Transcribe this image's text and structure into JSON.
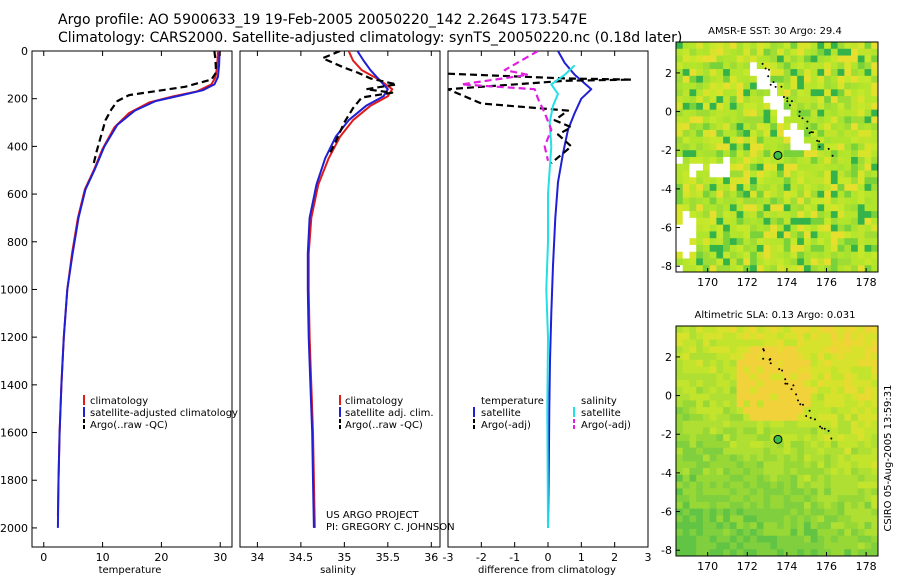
{
  "header": {
    "line1": "Argo profile: AO 5900633_19 19-Feb-2005 20050220_142 2.264S 173.547E",
    "line2": "Climatology: CARS2000. Satellite-adjusted climatology: synTS_20050220.nc (0.18d later)"
  },
  "credit": {
    "line1": "US ARGO PROJECT",
    "line2": "PI: GREGORY C. JOHNSON"
  },
  "footer_stamp": "CSIRO 05-Aug-2005 13:59:31",
  "colors": {
    "climatology": "#e11a1a",
    "satellite": "#1f1fd6",
    "argo": "#000000",
    "salinity_satellite": "#22e0e6",
    "salinity_argo": "#e020e0",
    "map_base": "#b5e62c"
  },
  "chart_data": [
    {
      "id": "temperature",
      "type": "line",
      "xlabel": "temperature",
      "ylabel": "",
      "xlim": [
        -2,
        32
      ],
      "ylim": [
        2080,
        0
      ],
      "xticks": [
        0,
        10,
        20,
        30
      ],
      "yticks": [
        0,
        200,
        400,
        600,
        800,
        1000,
        1200,
        1400,
        1600,
        1800,
        2000
      ],
      "legend": [
        "climatology",
        "satellite-adjusted climatology",
        "Argo(..raw -QC)"
      ],
      "series": [
        {
          "name": "climatology",
          "color": "#e11a1a",
          "dash": "",
          "points": [
            [
              29.6,
              0
            ],
            [
              29.5,
              60
            ],
            [
              29.2,
              110
            ],
            [
              28.5,
              140
            ],
            [
              26,
              170
            ],
            [
              22,
              190
            ],
            [
              18,
              215
            ],
            [
              14.5,
              260
            ],
            [
              12,
              320
            ],
            [
              10,
              410
            ],
            [
              8.5,
              500
            ],
            [
              7,
              580
            ],
            [
              5.8,
              700
            ],
            [
              4.8,
              850
            ],
            [
              4,
              1000
            ],
            [
              3.4,
              1200
            ],
            [
              3,
              1400
            ],
            [
              2.7,
              1600
            ],
            [
              2.5,
              1800
            ],
            [
              2.4,
              1950
            ]
          ]
        },
        {
          "name": "satellite-adjusted climatology",
          "color": "#1f1fd6",
          "dash": "",
          "points": [
            [
              29.9,
              0
            ],
            [
              29.8,
              60
            ],
            [
              29.6,
              110
            ],
            [
              29,
              140
            ],
            [
              27,
              165
            ],
            [
              23.5,
              185
            ],
            [
              19,
              210
            ],
            [
              15.5,
              250
            ],
            [
              12.5,
              310
            ],
            [
              10.3,
              400
            ],
            [
              8.6,
              500
            ],
            [
              7.1,
              580
            ],
            [
              5.9,
              700
            ],
            [
              4.9,
              850
            ],
            [
              4,
              1000
            ],
            [
              3.4,
              1200
            ],
            [
              3,
              1400
            ],
            [
              2.7,
              1600
            ],
            [
              2.5,
              1800
            ],
            [
              2.4,
              2000
            ]
          ]
        },
        {
          "name": "Argo(..raw -QC)",
          "color": "#000000",
          "dash": "7,4",
          "points": [
            [
              29,
              0
            ],
            [
              29.2,
              40
            ],
            [
              29.3,
              90
            ],
            [
              28.5,
              120
            ],
            [
              24,
              150
            ],
            [
              20,
              165
            ],
            [
              14.5,
              185
            ],
            [
              12.5,
              210
            ],
            [
              11.5,
              245
            ],
            [
              10.5,
              290
            ],
            [
              9.8,
              350
            ],
            [
              9,
              420
            ],
            [
              8.4,
              480
            ]
          ]
        }
      ]
    },
    {
      "id": "salinity",
      "type": "line",
      "xlabel": "salinity",
      "ylabel": "",
      "xlim": [
        33.8,
        36.1
      ],
      "ylim": [
        2080,
        0
      ],
      "xticks": [
        34,
        34.5,
        35,
        35.5,
        36
      ],
      "yticks": [],
      "legend": [
        "climatology",
        "satellite adj. clim.",
        "Argo(..raw -QC)"
      ],
      "series": [
        {
          "name": "climatology",
          "color": "#e11a1a",
          "dash": "",
          "points": [
            [
              35.05,
              0
            ],
            [
              35.1,
              40
            ],
            [
              35.2,
              80
            ],
            [
              35.4,
              120
            ],
            [
              35.55,
              160
            ],
            [
              35.5,
              190
            ],
            [
              35.3,
              230
            ],
            [
              35.1,
              290
            ],
            [
              34.95,
              360
            ],
            [
              34.82,
              450
            ],
            [
              34.7,
              560
            ],
            [
              34.62,
              700
            ],
            [
              34.59,
              850
            ],
            [
              34.59,
              1000
            ],
            [
              34.6,
              1200
            ],
            [
              34.62,
              1400
            ],
            [
              34.64,
              1600
            ],
            [
              34.65,
              1800
            ],
            [
              34.66,
              2000
            ]
          ]
        },
        {
          "name": "satellite adj. clim.",
          "color": "#1f1fd6",
          "dash": "",
          "points": [
            [
              35.15,
              0
            ],
            [
              35.22,
              40
            ],
            [
              35.3,
              80
            ],
            [
              35.4,
              120
            ],
            [
              35.5,
              160
            ],
            [
              35.45,
              190
            ],
            [
              35.25,
              230
            ],
            [
              35.05,
              290
            ],
            [
              34.9,
              360
            ],
            [
              34.78,
              450
            ],
            [
              34.68,
              560
            ],
            [
              34.6,
              700
            ],
            [
              34.58,
              850
            ],
            [
              34.58,
              1000
            ],
            [
              34.59,
              1200
            ],
            [
              34.61,
              1400
            ],
            [
              34.63,
              1600
            ],
            [
              34.64,
              1800
            ],
            [
              34.65,
              2000
            ]
          ]
        },
        {
          "name": "Argo(..raw -QC)",
          "color": "#000000",
          "dash": "7,4",
          "points": [
            [
              34.95,
              0
            ],
            [
              34.75,
              30
            ],
            [
              35.0,
              70
            ],
            [
              35.15,
              90
            ],
            [
              35.3,
              115
            ],
            [
              35.6,
              140
            ],
            [
              35.25,
              160
            ],
            [
              35.55,
              175
            ],
            [
              35.2,
              195
            ],
            [
              35.1,
              240
            ],
            [
              35.0,
              300
            ],
            [
              34.9,
              380
            ],
            [
              34.82,
              440
            ]
          ]
        }
      ]
    },
    {
      "id": "difference",
      "type": "line",
      "xlabel": "difference from climatology",
      "ylabel": "",
      "xlim": [
        -3,
        3
      ],
      "ylim": [
        2080,
        0
      ],
      "xticks": [
        -3,
        -2,
        -1,
        0,
        1,
        2,
        3
      ],
      "yticks": [],
      "legend_left": [
        "temperature",
        "satellite",
        "Argo(-adj)"
      ],
      "legend_right": [
        "salinity",
        "satellite",
        "Argo(-adj)"
      ],
      "series": [
        {
          "name": "temperature satellite",
          "color": "#1f1fd6",
          "dash": "",
          "points": [
            [
              0.3,
              0
            ],
            [
              0.5,
              50
            ],
            [
              0.8,
              100
            ],
            [
              1.3,
              160
            ],
            [
              1.0,
              200
            ],
            [
              0.8,
              260
            ],
            [
              0.6,
              330
            ],
            [
              0.45,
              430
            ],
            [
              0.3,
              550
            ],
            [
              0.22,
              700
            ],
            [
              0.15,
              900
            ],
            [
              0.1,
              1100
            ],
            [
              0.06,
              1300
            ],
            [
              0.04,
              1500
            ],
            [
              0.02,
              1800
            ],
            [
              0,
              2000
            ]
          ]
        },
        {
          "name": "temperature Argo(-adj)",
          "color": "#000000",
          "dash": "7,4",
          "points": [
            [
              -3,
              95
            ],
            [
              0.5,
              115
            ],
            [
              2.5,
              120
            ],
            [
              0.5,
              125
            ],
            [
              -3,
              160
            ],
            [
              -2,
              220
            ],
            [
              0.6,
              250
            ],
            [
              0.2,
              290
            ],
            [
              0.7,
              320
            ],
            [
              0.3,
              350
            ],
            [
              0.7,
              400
            ],
            [
              0.1,
              470
            ]
          ]
        },
        {
          "name": "salinity satellite",
          "color": "#22e0e6",
          "dash": "",
          "points": [
            [
              0.8,
              60
            ],
            [
              0.5,
              100
            ],
            [
              0.1,
              140
            ],
            [
              0.3,
              180
            ],
            [
              0.15,
              230
            ],
            [
              0.05,
              300
            ],
            [
              0.1,
              400
            ],
            [
              0,
              600
            ],
            [
              0,
              800
            ],
            [
              -0.05,
              1000
            ],
            [
              0,
              1200
            ],
            [
              -0.02,
              1500
            ],
            [
              0,
              2000
            ]
          ]
        },
        {
          "name": "salinity Argo(-adj)",
          "color": "#e020e0",
          "dash": "7,4",
          "points": [
            [
              -0.3,
              0
            ],
            [
              -0.8,
              40
            ],
            [
              -1.3,
              80
            ],
            [
              -0.6,
              100
            ],
            [
              -2.6,
              140
            ],
            [
              -0.4,
              160
            ],
            [
              -0.3,
              200
            ],
            [
              -0.1,
              260
            ],
            [
              0.1,
              330
            ],
            [
              -0.1,
              400
            ],
            [
              0,
              460
            ]
          ]
        }
      ]
    },
    {
      "id": "sst_map",
      "type": "heatmap",
      "title": "AMSR-E SST: 30 Argo: 29.4",
      "xlim": [
        168.4,
        178.6
      ],
      "ylim": [
        -8.3,
        3.6
      ],
      "xticks": [
        170,
        172,
        174,
        176,
        178
      ],
      "yticks": [
        2,
        0,
        -2,
        -4,
        -6,
        -8
      ],
      "marker": [
        173.547,
        -2.264
      ]
    },
    {
      "id": "sla_map",
      "type": "heatmap",
      "title": "Altimetric SLA: 0.13 Argo: 0.031",
      "xlim": [
        168.4,
        178.6
      ],
      "ylim": [
        -8.3,
        3.6
      ],
      "xticks": [
        170,
        172,
        174,
        176,
        178
      ],
      "yticks": [
        2,
        0,
        -2,
        -4,
        -6,
        -8
      ],
      "marker": [
        173.547,
        -2.264
      ]
    }
  ]
}
